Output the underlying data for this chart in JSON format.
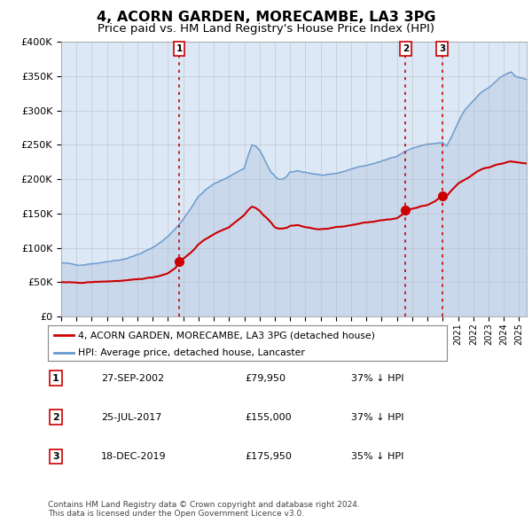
{
  "title": "4, ACORN GARDEN, MORECAMBE, LA3 3PG",
  "subtitle": "Price paid vs. HM Land Registry's House Price Index (HPI)",
  "title_fontsize": 11.5,
  "subtitle_fontsize": 9.5,
  "bg_color": "#dce8f5",
  "ylim": [
    0,
    400000
  ],
  "yticks": [
    0,
    50000,
    100000,
    150000,
    200000,
    250000,
    300000,
    350000,
    400000
  ],
  "ytick_labels": [
    "£0",
    "£50K",
    "£100K",
    "£150K",
    "£200K",
    "£250K",
    "£300K",
    "£350K",
    "£400K"
  ],
  "red_color": "#cc0000",
  "blue_color": "#6699cc",
  "blue_fill_color": "#aabbdd",
  "grid_color": "#bbbbbb",
  "transactions": [
    {
      "label": "1",
      "date_num": 2002.74,
      "price": 79950
    },
    {
      "label": "2",
      "date_num": 2017.56,
      "price": 155000
    },
    {
      "label": "3",
      "date_num": 2019.96,
      "price": 175950
    }
  ],
  "legend_entries": [
    "4, ACORN GARDEN, MORECAMBE, LA3 3PG (detached house)",
    "HPI: Average price, detached house, Lancaster"
  ],
  "table_rows": [
    {
      "num": "1",
      "date": "27-SEP-2002",
      "price": "£79,950",
      "pct": "37% ↓ HPI"
    },
    {
      "num": "2",
      "date": "25-JUL-2017",
      "price": "£155,000",
      "pct": "37% ↓ HPI"
    },
    {
      "num": "3",
      "date": "18-DEC-2019",
      "price": "£175,950",
      "pct": "35% ↓ HPI"
    }
  ],
  "footer_text": "Contains HM Land Registry data © Crown copyright and database right 2024.\nThis data is licensed under the Open Government Licence v3.0.",
  "xlim_start": 1995.0,
  "xlim_end": 2025.5,
  "hpi_waypoints": [
    [
      1995.0,
      78000
    ],
    [
      1995.5,
      77000
    ],
    [
      1996.0,
      75000
    ],
    [
      1996.5,
      75500
    ],
    [
      1997.0,
      77000
    ],
    [
      1997.5,
      78000
    ],
    [
      1998.0,
      80000
    ],
    [
      1998.5,
      81500
    ],
    [
      1999.0,
      83000
    ],
    [
      1999.5,
      86000
    ],
    [
      2000.0,
      90000
    ],
    [
      2000.5,
      95000
    ],
    [
      2001.0,
      100000
    ],
    [
      2001.5,
      108000
    ],
    [
      2002.0,
      117000
    ],
    [
      2002.5,
      128000
    ],
    [
      2003.0,
      142000
    ],
    [
      2003.5,
      158000
    ],
    [
      2004.0,
      175000
    ],
    [
      2004.5,
      185000
    ],
    [
      2005.0,
      193000
    ],
    [
      2005.5,
      198000
    ],
    [
      2006.0,
      204000
    ],
    [
      2006.5,
      210000
    ],
    [
      2007.0,
      216000
    ],
    [
      2007.25,
      235000
    ],
    [
      2007.5,
      250000
    ],
    [
      2007.75,
      248000
    ],
    [
      2008.0,
      242000
    ],
    [
      2008.25,
      232000
    ],
    [
      2008.5,
      220000
    ],
    [
      2008.75,
      210000
    ],
    [
      2009.0,
      204000
    ],
    [
      2009.25,
      200000
    ],
    [
      2009.5,
      200000
    ],
    [
      2009.75,
      203000
    ],
    [
      2010.0,
      210000
    ],
    [
      2010.5,
      212000
    ],
    [
      2011.0,
      210000
    ],
    [
      2011.5,
      208000
    ],
    [
      2012.0,
      206000
    ],
    [
      2012.5,
      206000
    ],
    [
      2013.0,
      208000
    ],
    [
      2013.5,
      211000
    ],
    [
      2014.0,
      215000
    ],
    [
      2014.5,
      218000
    ],
    [
      2015.0,
      220000
    ],
    [
      2015.5,
      223000
    ],
    [
      2016.0,
      226000
    ],
    [
      2016.5,
      230000
    ],
    [
      2017.0,
      234000
    ],
    [
      2017.5,
      240000
    ],
    [
      2018.0,
      245000
    ],
    [
      2018.5,
      248000
    ],
    [
      2019.0,
      251000
    ],
    [
      2019.5,
      252000
    ],
    [
      2020.0,
      253000
    ],
    [
      2020.25,
      248000
    ],
    [
      2020.5,
      258000
    ],
    [
      2020.75,
      270000
    ],
    [
      2021.0,
      282000
    ],
    [
      2021.25,
      293000
    ],
    [
      2021.5,
      302000
    ],
    [
      2021.75,
      308000
    ],
    [
      2022.0,
      314000
    ],
    [
      2022.25,
      320000
    ],
    [
      2022.5,
      326000
    ],
    [
      2022.75,
      330000
    ],
    [
      2023.0,
      333000
    ],
    [
      2023.25,
      338000
    ],
    [
      2023.5,
      343000
    ],
    [
      2023.75,
      348000
    ],
    [
      2024.0,
      352000
    ],
    [
      2024.25,
      354000
    ],
    [
      2024.5,
      356000
    ],
    [
      2024.75,
      350000
    ],
    [
      2025.0,
      348000
    ],
    [
      2025.5,
      345000
    ]
  ],
  "red_waypoints": [
    [
      1995.0,
      50000
    ],
    [
      1995.5,
      49500
    ],
    [
      1996.0,
      49000
    ],
    [
      1996.5,
      49200
    ],
    [
      1997.0,
      50000
    ],
    [
      1997.5,
      50500
    ],
    [
      1998.0,
      51000
    ],
    [
      1998.5,
      51500
    ],
    [
      1999.0,
      52000
    ],
    [
      1999.5,
      52800
    ],
    [
      2000.0,
      54000
    ],
    [
      2000.5,
      55500
    ],
    [
      2001.0,
      57000
    ],
    [
      2001.5,
      59500
    ],
    [
      2002.0,
      63000
    ],
    [
      2002.5,
      71000
    ],
    [
      2002.74,
      79950
    ],
    [
      2003.0,
      84000
    ],
    [
      2003.5,
      93000
    ],
    [
      2004.0,
      105000
    ],
    [
      2004.5,
      113000
    ],
    [
      2005.0,
      120000
    ],
    [
      2005.5,
      125000
    ],
    [
      2006.0,
      130000
    ],
    [
      2006.5,
      139000
    ],
    [
      2007.0,
      148000
    ],
    [
      2007.25,
      155000
    ],
    [
      2007.5,
      160000
    ],
    [
      2007.75,
      158000
    ],
    [
      2008.0,
      154000
    ],
    [
      2008.25,
      148000
    ],
    [
      2008.5,
      143000
    ],
    [
      2008.75,
      137000
    ],
    [
      2009.0,
      130000
    ],
    [
      2009.25,
      128000
    ],
    [
      2009.5,
      128000
    ],
    [
      2009.75,
      129000
    ],
    [
      2010.0,
      132000
    ],
    [
      2010.5,
      133000
    ],
    [
      2011.0,
      130000
    ],
    [
      2011.5,
      128000
    ],
    [
      2012.0,
      127000
    ],
    [
      2012.5,
      128000
    ],
    [
      2013.0,
      130000
    ],
    [
      2013.5,
      131000
    ],
    [
      2014.0,
      133000
    ],
    [
      2014.5,
      135000
    ],
    [
      2015.0,
      137000
    ],
    [
      2015.5,
      138000
    ],
    [
      2016.0,
      140000
    ],
    [
      2016.5,
      141000
    ],
    [
      2017.0,
      143000
    ],
    [
      2017.5,
      151000
    ],
    [
      2017.56,
      155000
    ],
    [
      2018.0,
      157000
    ],
    [
      2018.5,
      160000
    ],
    [
      2019.0,
      162000
    ],
    [
      2019.5,
      168000
    ],
    [
      2019.96,
      175950
    ],
    [
      2020.0,
      177000
    ],
    [
      2020.25,
      175000
    ],
    [
      2020.5,
      182000
    ],
    [
      2020.75,
      188000
    ],
    [
      2021.0,
      193000
    ],
    [
      2021.25,
      197000
    ],
    [
      2021.5,
      200000
    ],
    [
      2021.75,
      203000
    ],
    [
      2022.0,
      207000
    ],
    [
      2022.25,
      211000
    ],
    [
      2022.5,
      214000
    ],
    [
      2022.75,
      216000
    ],
    [
      2023.0,
      217000
    ],
    [
      2023.25,
      219000
    ],
    [
      2023.5,
      221000
    ],
    [
      2023.75,
      222000
    ],
    [
      2024.0,
      223000
    ],
    [
      2024.25,
      225000
    ],
    [
      2024.5,
      226000
    ],
    [
      2024.75,
      225000
    ],
    [
      2025.0,
      224000
    ],
    [
      2025.5,
      223000
    ]
  ]
}
